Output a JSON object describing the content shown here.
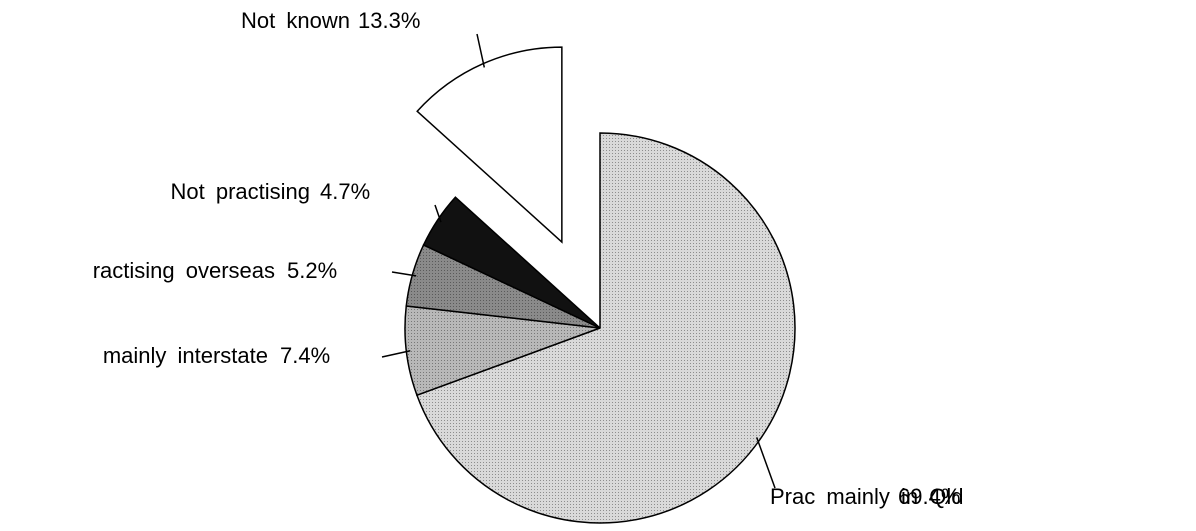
{
  "chart_data": {
    "type": "pie",
    "categories": [
      "Prac mainly in Qld",
      "mainly interstate",
      "ractising overseas",
      "Not practising",
      "Not known"
    ],
    "values": [
      69.4,
      7.4,
      5.2,
      4.7,
      13.3
    ],
    "value_labels": [
      "69.4%",
      "7.4%",
      "5.2%",
      "4.7%",
      "13.3%"
    ],
    "colors": [
      "#d9d9d9",
      "#b8b8b8",
      "#8a8a8a",
      "#111111",
      "#ffffff"
    ],
    "exploded": [
      false,
      false,
      false,
      false,
      true
    ]
  }
}
